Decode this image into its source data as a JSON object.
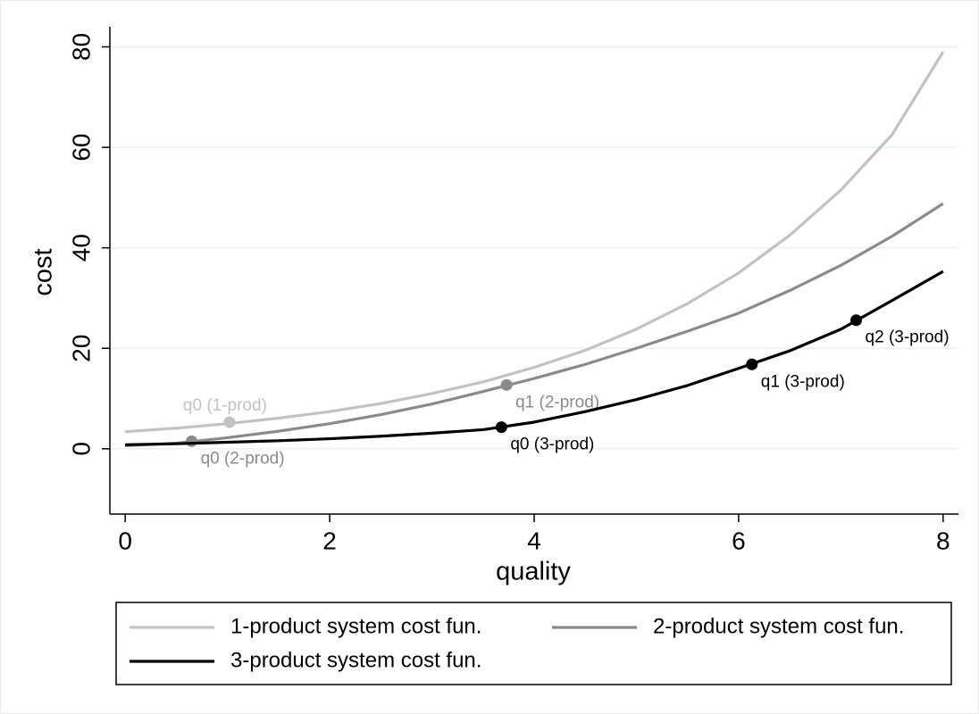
{
  "chart_data": {
    "type": "line",
    "xlabel": "quality",
    "ylabel": "cost",
    "xlim": [
      -0.15,
      8.15
    ],
    "ylim": [
      -13,
      84
    ],
    "xticks": [
      0,
      2,
      4,
      6,
      8
    ],
    "yticks": [
      0,
      20,
      40,
      60,
      80
    ],
    "grid": true,
    "series": [
      {
        "name": "1-product system cost fun.",
        "color": "#c2c2c2",
        "x": [
          0,
          0.5,
          1,
          1.5,
          2,
          2.5,
          3,
          3.5,
          4,
          4.5,
          5,
          5.5,
          6,
          6.5,
          7,
          7.5,
          8
        ],
        "values": [
          3.4,
          4.1,
          5.0,
          6.1,
          7.4,
          9.0,
          11,
          13.3,
          16.2,
          19.6,
          23.8,
          28.9,
          35,
          42.5,
          51.5,
          62.5,
          79
        ],
        "points": [
          {
            "x": 1.02,
            "y": 5.3,
            "label": "q0 (1-prod)"
          }
        ]
      },
      {
        "name": "2-product system cost fun.",
        "color": "#8a8a8a",
        "x": [
          0,
          0.5,
          1,
          1.5,
          2,
          2.5,
          3,
          3.5,
          4,
          4.5,
          5,
          5.5,
          6,
          6.5,
          7,
          7.5,
          8
        ],
        "values": [
          0.6,
          1.1,
          2.2,
          3.5,
          5,
          6.8,
          8.9,
          11.4,
          14,
          16.8,
          20,
          23.4,
          27,
          31.5,
          36.5,
          42.3,
          48.8
        ],
        "points": [
          {
            "x": 0.65,
            "y": 1.5,
            "label": "q0 (2-prod)"
          },
          {
            "x": 3.73,
            "y": 12.7,
            "label": "q1 (2-prod)"
          }
        ]
      },
      {
        "name": "3-product system cost fun.",
        "color": "#000000",
        "x": [
          0,
          0.5,
          1,
          1.5,
          2,
          2.5,
          3,
          3.5,
          4,
          4.5,
          5,
          5.5,
          6,
          6.5,
          7,
          7.5,
          8
        ],
        "values": [
          0.8,
          1.0,
          1.3,
          1.6,
          2.0,
          2.5,
          3.1,
          3.8,
          5.3,
          7.4,
          9.8,
          12.6,
          16,
          19.5,
          23.8,
          29.5,
          35.3
        ],
        "points": [
          {
            "x": 3.68,
            "y": 4.3,
            "label": "q0 (3-prod)"
          },
          {
            "x": 6.13,
            "y": 16.8,
            "label": "q1 (3-prod)"
          },
          {
            "x": 7.15,
            "y": 25.6,
            "label": "q2 (3-prod)"
          }
        ]
      }
    ]
  }
}
